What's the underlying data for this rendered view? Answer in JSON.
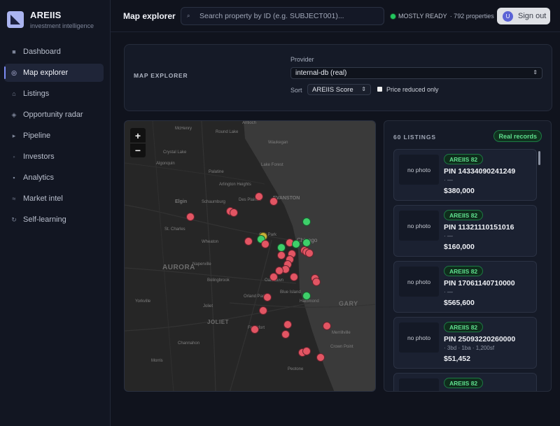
{
  "brand": {
    "name": "AREIIS",
    "tagline": "investment intelligence"
  },
  "nav": [
    {
      "label": "Dashboard",
      "icon": "grid-icon",
      "active": false
    },
    {
      "label": "Map explorer",
      "icon": "map-pin-icon",
      "active": true
    },
    {
      "label": "Listings",
      "icon": "home-icon",
      "active": false
    },
    {
      "label": "Opportunity radar",
      "icon": "radar-icon",
      "active": false
    },
    {
      "label": "Pipeline",
      "icon": "pipeline-icon",
      "active": false
    },
    {
      "label": "Investors",
      "icon": "investors-icon",
      "active": false
    },
    {
      "label": "Analytics",
      "icon": "chart-icon",
      "active": false
    },
    {
      "label": "Market intel",
      "icon": "trend-icon",
      "active": false
    },
    {
      "label": "Self-learning",
      "icon": "refresh-icon",
      "active": false
    }
  ],
  "header": {
    "title": "Map explorer",
    "search_placeholder": "Search property by ID (e.g. SUBJECT001)...",
    "status_label": "MOSTLY READY",
    "status_count": "· 792 properties",
    "signout_label": "Sign out",
    "avatar_initial": "U"
  },
  "filters": {
    "heading": "MAP EXPLORER",
    "provider_label": "Provider",
    "provider_value": "internal-db (real)",
    "sort_label": "Sort",
    "sort_value": "AREIIS Score",
    "price_reduced_label": "Price reduced only",
    "price_reduced_checked": false
  },
  "map": {
    "zoom_in": "+",
    "zoom_out": "−",
    "places": [
      "McHenry",
      "Round Lake",
      "Antioch",
      "Waukegan",
      "Lake Forest",
      "Crystal Lake",
      "Algonquin",
      "Palatine",
      "Arlington Heights",
      "Elgin",
      "Schaumburg",
      "Des Plaines",
      "EVANSTON",
      "St. Charles",
      "Wheaton",
      "Oak Park",
      "Chicago",
      "AURORA",
      "Naperville",
      "Bolingbrook",
      "Oak Lawn",
      "Orland Park",
      "Blue Island",
      "Joliet",
      "JOLIET",
      "Frankfort",
      "Hammond",
      "GARY",
      "Merrillville",
      "Crown Point",
      "Channahon",
      "Yorkville",
      "Morris",
      "Peotone"
    ],
    "markers": [
      {
        "lat": 42.12,
        "lng": -87.87,
        "status": "red"
      },
      {
        "lat": 42.1,
        "lng": -87.8,
        "status": "red"
      },
      {
        "lat": 42.04,
        "lng": -88.2,
        "status": "red"
      },
      {
        "lat": 42.06,
        "lng": -88.01,
        "status": "red"
      },
      {
        "lat": 42.055,
        "lng": -87.99,
        "status": "red"
      },
      {
        "lat": 42.02,
        "lng": -87.64,
        "status": "green"
      },
      {
        "lat": 41.94,
        "lng": -87.92,
        "status": "red"
      },
      {
        "lat": 41.96,
        "lng": -87.85,
        "status": "yellow"
      },
      {
        "lat": 41.95,
        "lng": -87.86,
        "status": "green"
      },
      {
        "lat": 41.93,
        "lng": -87.84,
        "status": "red"
      },
      {
        "lat": 41.935,
        "lng": -87.72,
        "status": "red"
      },
      {
        "lat": 41.93,
        "lng": -87.69,
        "status": "green"
      },
      {
        "lat": 41.935,
        "lng": -87.64,
        "status": "green"
      },
      {
        "lat": 41.915,
        "lng": -87.76,
        "status": "green"
      },
      {
        "lat": 41.905,
        "lng": -87.65,
        "status": "red"
      },
      {
        "lat": 41.9,
        "lng": -87.64,
        "status": "red"
      },
      {
        "lat": 41.895,
        "lng": -87.625,
        "status": "red"
      },
      {
        "lat": 41.89,
        "lng": -87.71,
        "status": "red"
      },
      {
        "lat": 41.885,
        "lng": -87.76,
        "status": "red"
      },
      {
        "lat": 41.87,
        "lng": -87.72,
        "status": "red"
      },
      {
        "lat": 41.85,
        "lng": -87.73,
        "status": "red"
      },
      {
        "lat": 41.83,
        "lng": -87.74,
        "status": "red"
      },
      {
        "lat": 41.825,
        "lng": -87.77,
        "status": "red"
      },
      {
        "lat": 41.8,
        "lng": -87.7,
        "status": "red"
      },
      {
        "lat": 41.8,
        "lng": -87.8,
        "status": "red"
      },
      {
        "lat": 41.795,
        "lng": -87.6,
        "status": "red"
      },
      {
        "lat": 41.78,
        "lng": -87.59,
        "status": "red"
      },
      {
        "lat": 41.725,
        "lng": -87.64,
        "status": "green"
      },
      {
        "lat": 41.72,
        "lng": -87.83,
        "status": "red"
      },
      {
        "lat": 41.665,
        "lng": -87.85,
        "status": "red"
      },
      {
        "lat": 41.61,
        "lng": -87.73,
        "status": "red"
      },
      {
        "lat": 41.605,
        "lng": -87.54,
        "status": "red"
      },
      {
        "lat": 41.59,
        "lng": -87.89,
        "status": "red"
      },
      {
        "lat": 41.57,
        "lng": -87.74,
        "status": "red"
      },
      {
        "lat": 41.5,
        "lng": -87.66,
        "status": "red"
      },
      {
        "lat": 41.505,
        "lng": -87.64,
        "status": "red"
      },
      {
        "lat": 41.48,
        "lng": -87.57,
        "status": "red"
      }
    ]
  },
  "listings": {
    "count_label": "60 LISTINGS",
    "source_badge": "Real records",
    "items": [
      {
        "photo": "no photo",
        "score": "AREIIS 82",
        "pin": "PIN 14334090241249",
        "meta": "· —",
        "price": "$380,000"
      },
      {
        "photo": "no photo",
        "score": "AREIIS 82",
        "pin": "PIN 11321110151016",
        "meta": "· —",
        "price": "$160,000"
      },
      {
        "photo": "no photo",
        "score": "AREIIS 82",
        "pin": "PIN 17061140710000",
        "meta": "· —",
        "price": "$565,600"
      },
      {
        "photo": "no photo",
        "score": "AREIIS 82",
        "pin": "PIN 25093220260000",
        "meta": "· 3bd · 1ba · 1,200sf",
        "price": "$51,452"
      },
      {
        "photo": "",
        "score": "AREIIS 82",
        "pin": "",
        "meta": "",
        "price": ""
      }
    ]
  },
  "colors": {
    "accent": "#7c8cf5",
    "marker_red": "#e25563",
    "marker_green": "#3ecf6a",
    "marker_yellow": "#c9b23a",
    "badge_green": "#5fe08e"
  }
}
